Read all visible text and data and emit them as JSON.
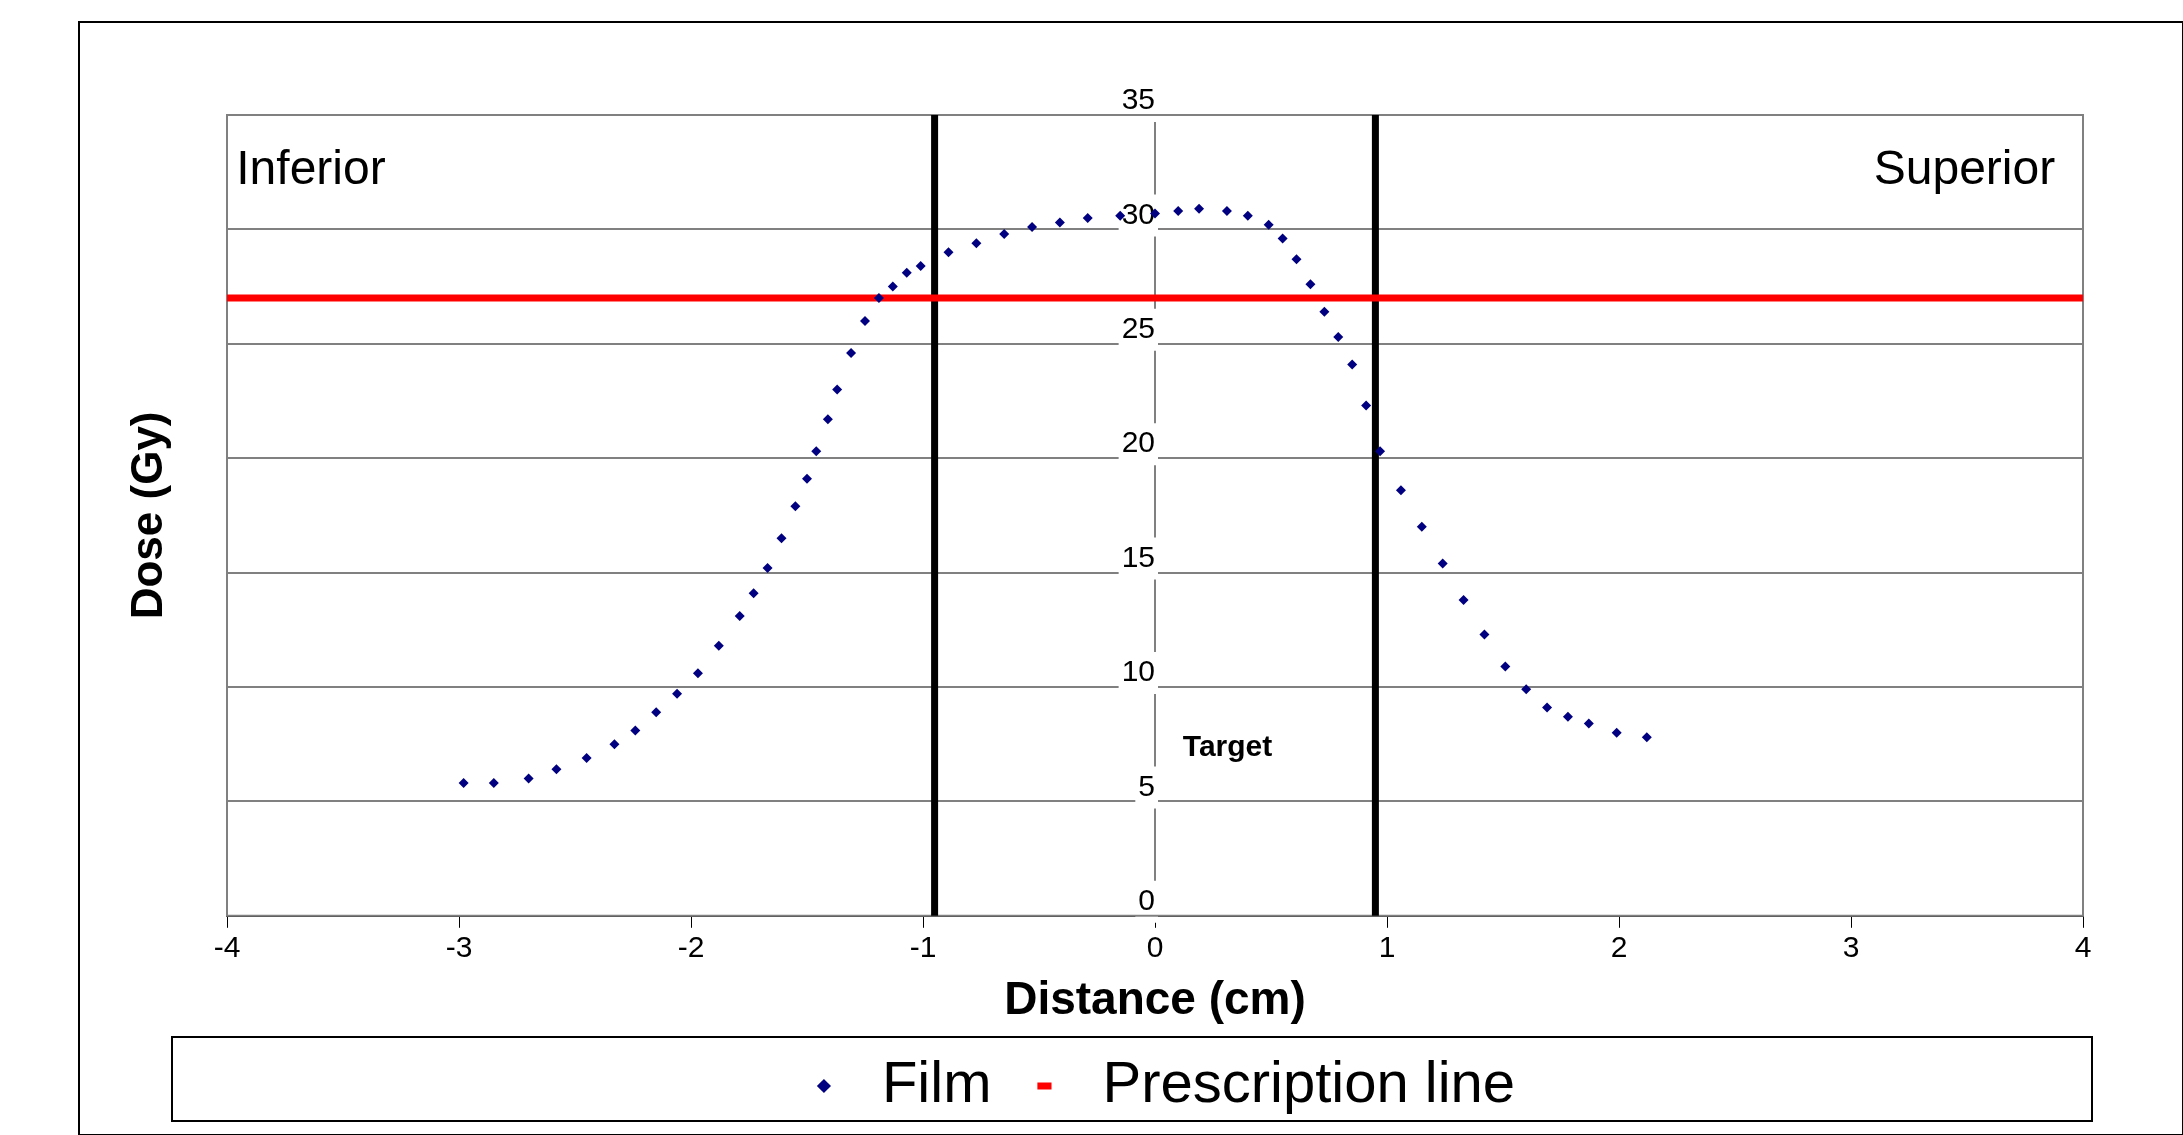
{
  "chart_data": {
    "type": "scatter",
    "xlabel": "Distance (cm)",
    "ylabel": "Dose (Gy)",
    "series": [
      {
        "name": "Film",
        "marker": "diamond",
        "color": "#000080",
        "x": [
          -2.98,
          -2.85,
          -2.7,
          -2.58,
          -2.45,
          -2.33,
          -2.24,
          -2.15,
          -2.06,
          -1.97,
          -1.88,
          -1.79,
          -1.73,
          -1.67,
          -1.61,
          -1.55,
          -1.5,
          -1.46,
          -1.41,
          -1.37,
          -1.31,
          -1.25,
          -1.19,
          -1.13,
          -1.07,
          -1.01,
          -0.89,
          -0.77,
          -0.65,
          -0.53,
          -0.41,
          -0.29,
          -0.15,
          0,
          0.1,
          0.19,
          0.31,
          0.4,
          0.49,
          0.55,
          0.61,
          0.67,
          0.73,
          0.79,
          0.85,
          0.91,
          0.97,
          1.06,
          1.15,
          1.24,
          1.33,
          1.42,
          1.51,
          1.6,
          1.69,
          1.78,
          1.87,
          1.99,
          2.12
        ],
        "values": [
          5.8,
          5.8,
          6.0,
          6.4,
          6.9,
          7.5,
          8.1,
          8.9,
          9.7,
          10.6,
          11.8,
          13.1,
          14.1,
          15.2,
          16.5,
          17.9,
          19.1,
          20.3,
          21.7,
          23,
          24.6,
          26,
          27,
          27.5,
          28.1,
          28.4,
          29.0,
          29.4,
          29.8,
          30.1,
          30.3,
          30.5,
          30.6,
          30.7,
          30.8,
          30.9,
          30.8,
          30.6,
          30.2,
          29.6,
          28.7,
          27.6,
          26.4,
          25.3,
          24.1,
          22.3,
          20.3,
          18.6,
          17,
          15.4,
          13.8,
          12.3,
          10.9,
          9.9,
          9.1,
          8.7,
          8.4,
          8,
          7.8
        ]
      },
      {
        "name": "Prescription line",
        "type": "line",
        "marker": "none",
        "color": "#ff0000",
        "x": [
          -4,
          4
        ],
        "values": [
          27,
          27
        ]
      }
    ],
    "xlim": [
      -4,
      4
    ],
    "xticks": [
      -4,
      -3,
      -2,
      -1,
      0,
      1,
      2,
      3,
      4
    ],
    "ylim": [
      0,
      35
    ],
    "yticks": [
      0,
      5,
      10,
      15,
      20,
      25,
      30,
      35
    ],
    "ref_lines": [
      {
        "axis": "x",
        "value": -0.95,
        "color": "#000000"
      },
      {
        "axis": "x",
        "value": 0.95,
        "color": "#000000"
      }
    ],
    "annotations": [
      "Inferior",
      "Superior",
      "Target"
    ],
    "grid": "y",
    "legend": "bottom"
  }
}
